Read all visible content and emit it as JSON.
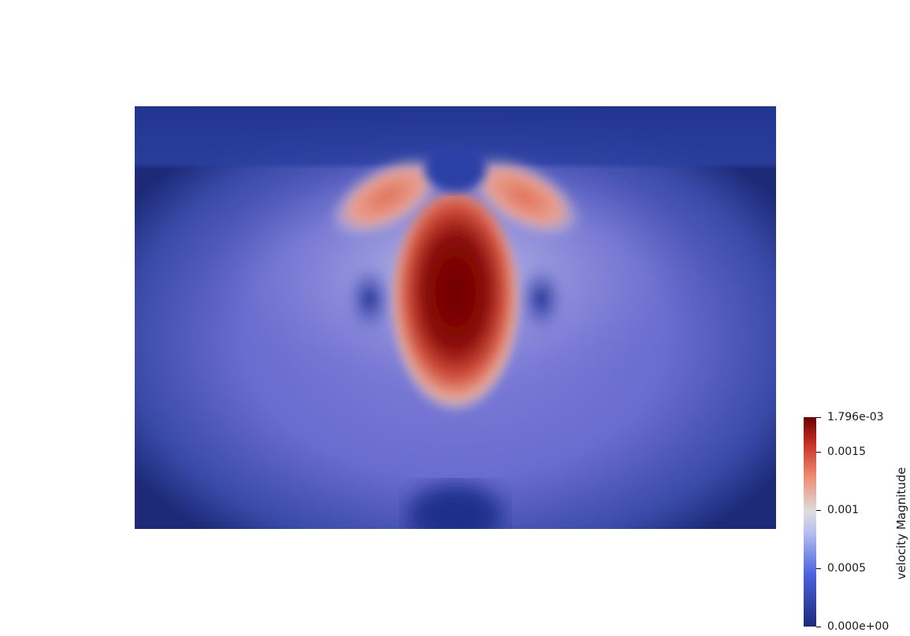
{
  "render": {
    "scalar": "velocity Magnitude",
    "colormap": "cool-to-warm",
    "range": [
      0.0,
      0.001796
    ],
    "colors": {
      "low": "#1f2f8a",
      "mid_low": "#5a5fc8",
      "mid": "#dcdcdc",
      "mid_high": "#e07a63",
      "high": "#7a0000",
      "background": "#ffffff"
    }
  },
  "colorbar": {
    "title": "velocity Magnitude",
    "ticks": [
      {
        "value": 0.001796,
        "label": "1.796e-03"
      },
      {
        "value": 0.0015,
        "label": "0.0015"
      },
      {
        "value": 0.001,
        "label": "0.001"
      },
      {
        "value": 0.0005,
        "label": "0.0005"
      },
      {
        "value": 0.0,
        "label": "0.000e+00"
      }
    ]
  }
}
